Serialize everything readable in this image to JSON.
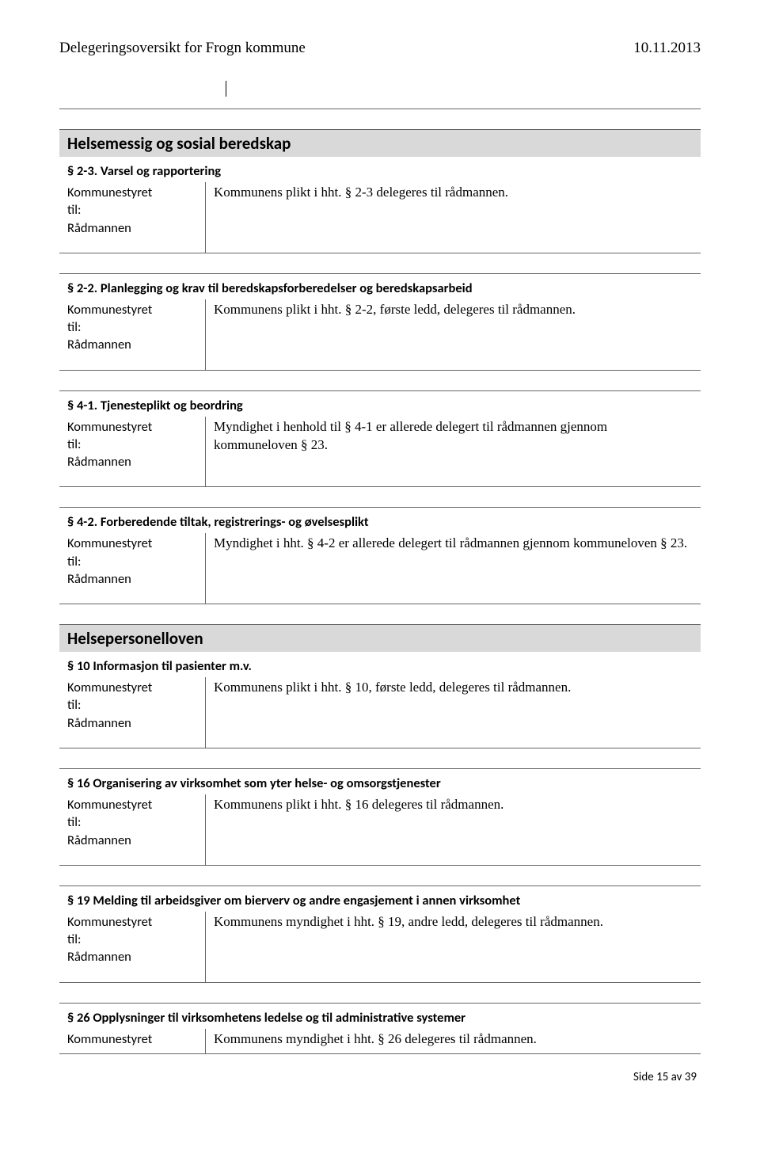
{
  "header": {
    "title": "Delegeringsoversikt for Frogn kommune",
    "date": "10.11.2013"
  },
  "left_col": {
    "line1": "Kommunestyret",
    "line2": "til:",
    "line3": "Rådmannen",
    "single": "Kommunestyret"
  },
  "sections": [
    {
      "heading": "Helsemessig og sosial beredskap",
      "items": [
        {
          "sub": "§ 2-3. Varsel og rapportering",
          "text": "Kommunens plikt i hht. § 2-3 delegeres til rådmannen.",
          "three": true
        },
        {
          "sub": "§ 2-2. Planlegging og krav til beredskapsforberedelser og beredskapsarbeid",
          "text": "Kommunens plikt i hht. § 2-2, første ledd, delegeres til rådmannen.",
          "three": true
        },
        {
          "sub": "§ 4-1. Tjenesteplikt og beordring",
          "text": "Myndighet i henhold til § 4-1 er allerede delegert til rådmannen gjennom kommuneloven § 23.",
          "three": true
        },
        {
          "sub": "§ 4-2. Forberedende tiltak, registrerings- og øvelsesplikt",
          "text": "Myndighet i hht. § 4-2 er allerede delegert til rådmannen gjennom kommuneloven § 23.",
          "three": true
        }
      ]
    },
    {
      "heading": "Helsepersonelloven",
      "items": [
        {
          "sub": "§ 10 Informasjon til pasienter m.v.",
          "text": "Kommunens plikt i hht. § 10, første ledd, delegeres til rådmannen.",
          "three": true
        },
        {
          "sub": "§ 16 Organisering av virksomhet som yter helse- og omsorgstjenester",
          "text": "Kommunens plikt i hht. § 16 delegeres til rådmannen.",
          "three": true
        },
        {
          "sub": "§ 19 Melding til arbeidsgiver om bierverv og andre engasjement i annen virksomhet",
          "text": "Kommunens myndighet i hht. § 19, andre ledd, delegeres til rådmannen.",
          "three": true
        },
        {
          "sub": "§ 26 Opplysninger til virksomhetens ledelse og til administrative systemer",
          "text": "Kommunens myndighet i hht. § 26 delegeres til rådmannen.",
          "three": false
        }
      ]
    }
  ],
  "footer": "Side 15 av 39",
  "colors": {
    "heading_bg": "#d9d9d9",
    "border": "#666666",
    "text": "#000000",
    "bg": "#ffffff"
  }
}
